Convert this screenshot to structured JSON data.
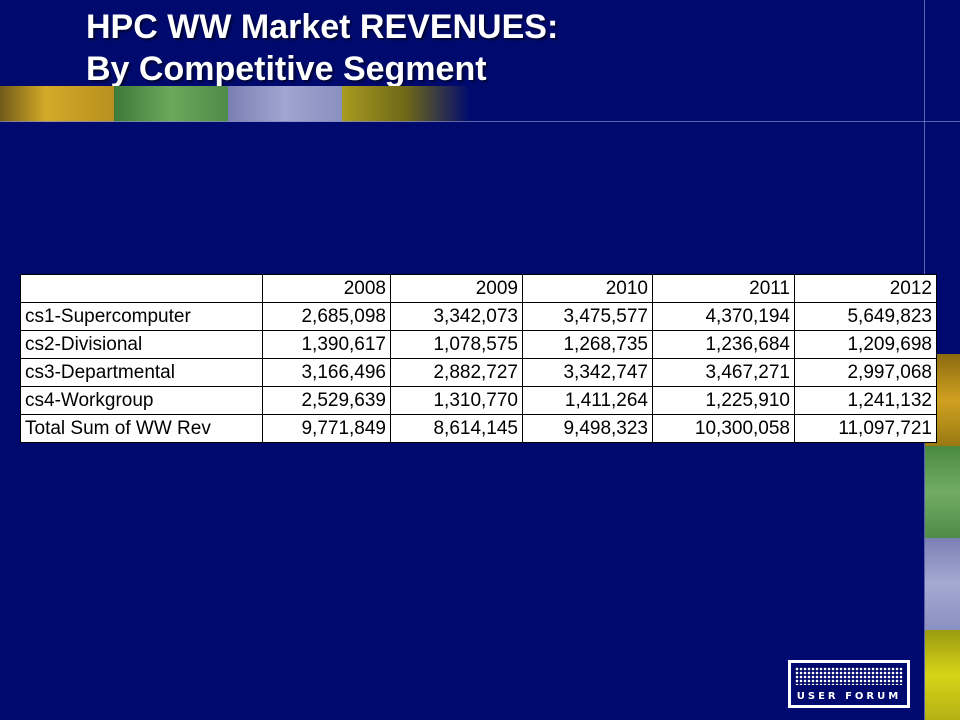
{
  "slide": {
    "title_line1": "HPC WW Market REVENUES:",
    "title_line2": "By Competitive Segment"
  },
  "table": {
    "header_blank": "",
    "years": [
      "2008",
      "2009",
      "2010",
      "2011",
      "2012"
    ],
    "rows": [
      {
        "label": "cs1-Supercomputer",
        "values": [
          "2,685,098",
          "3,342,073",
          "3,475,577",
          "4,370,194",
          "5,649,823"
        ]
      },
      {
        "label": "cs2-Divisional",
        "values": [
          "1,390,617",
          "1,078,575",
          "1,268,735",
          "1,236,684",
          "1,209,698"
        ]
      },
      {
        "label": "cs3-Departmental",
        "values": [
          "3,166,496",
          "2,882,727",
          "3,342,747",
          "3,467,271",
          "2,997,068"
        ]
      },
      {
        "label": "cs4-Workgroup",
        "values": [
          "2,529,639",
          "1,310,770",
          "1,411,264",
          "1,225,910",
          "1,241,132"
        ]
      },
      {
        "label": "Total Sum of WW Rev",
        "values": [
          "9,771,849",
          "8,614,145",
          "9,498,323",
          "10,300,058",
          "11,097,721"
        ]
      }
    ]
  },
  "logo": {
    "text": "USER FORUM"
  },
  "colors": {
    "background": "#000a6e",
    "strip_gold": "#c8a020",
    "strip_green": "#5f9c52",
    "strip_lavender": "#9096c4",
    "strip_olive": "#a89a20",
    "side_gold": "#b48a12",
    "side_green": "#5f9c52",
    "side_lavender": "#9096c4",
    "side_yellow": "#c8c410"
  }
}
